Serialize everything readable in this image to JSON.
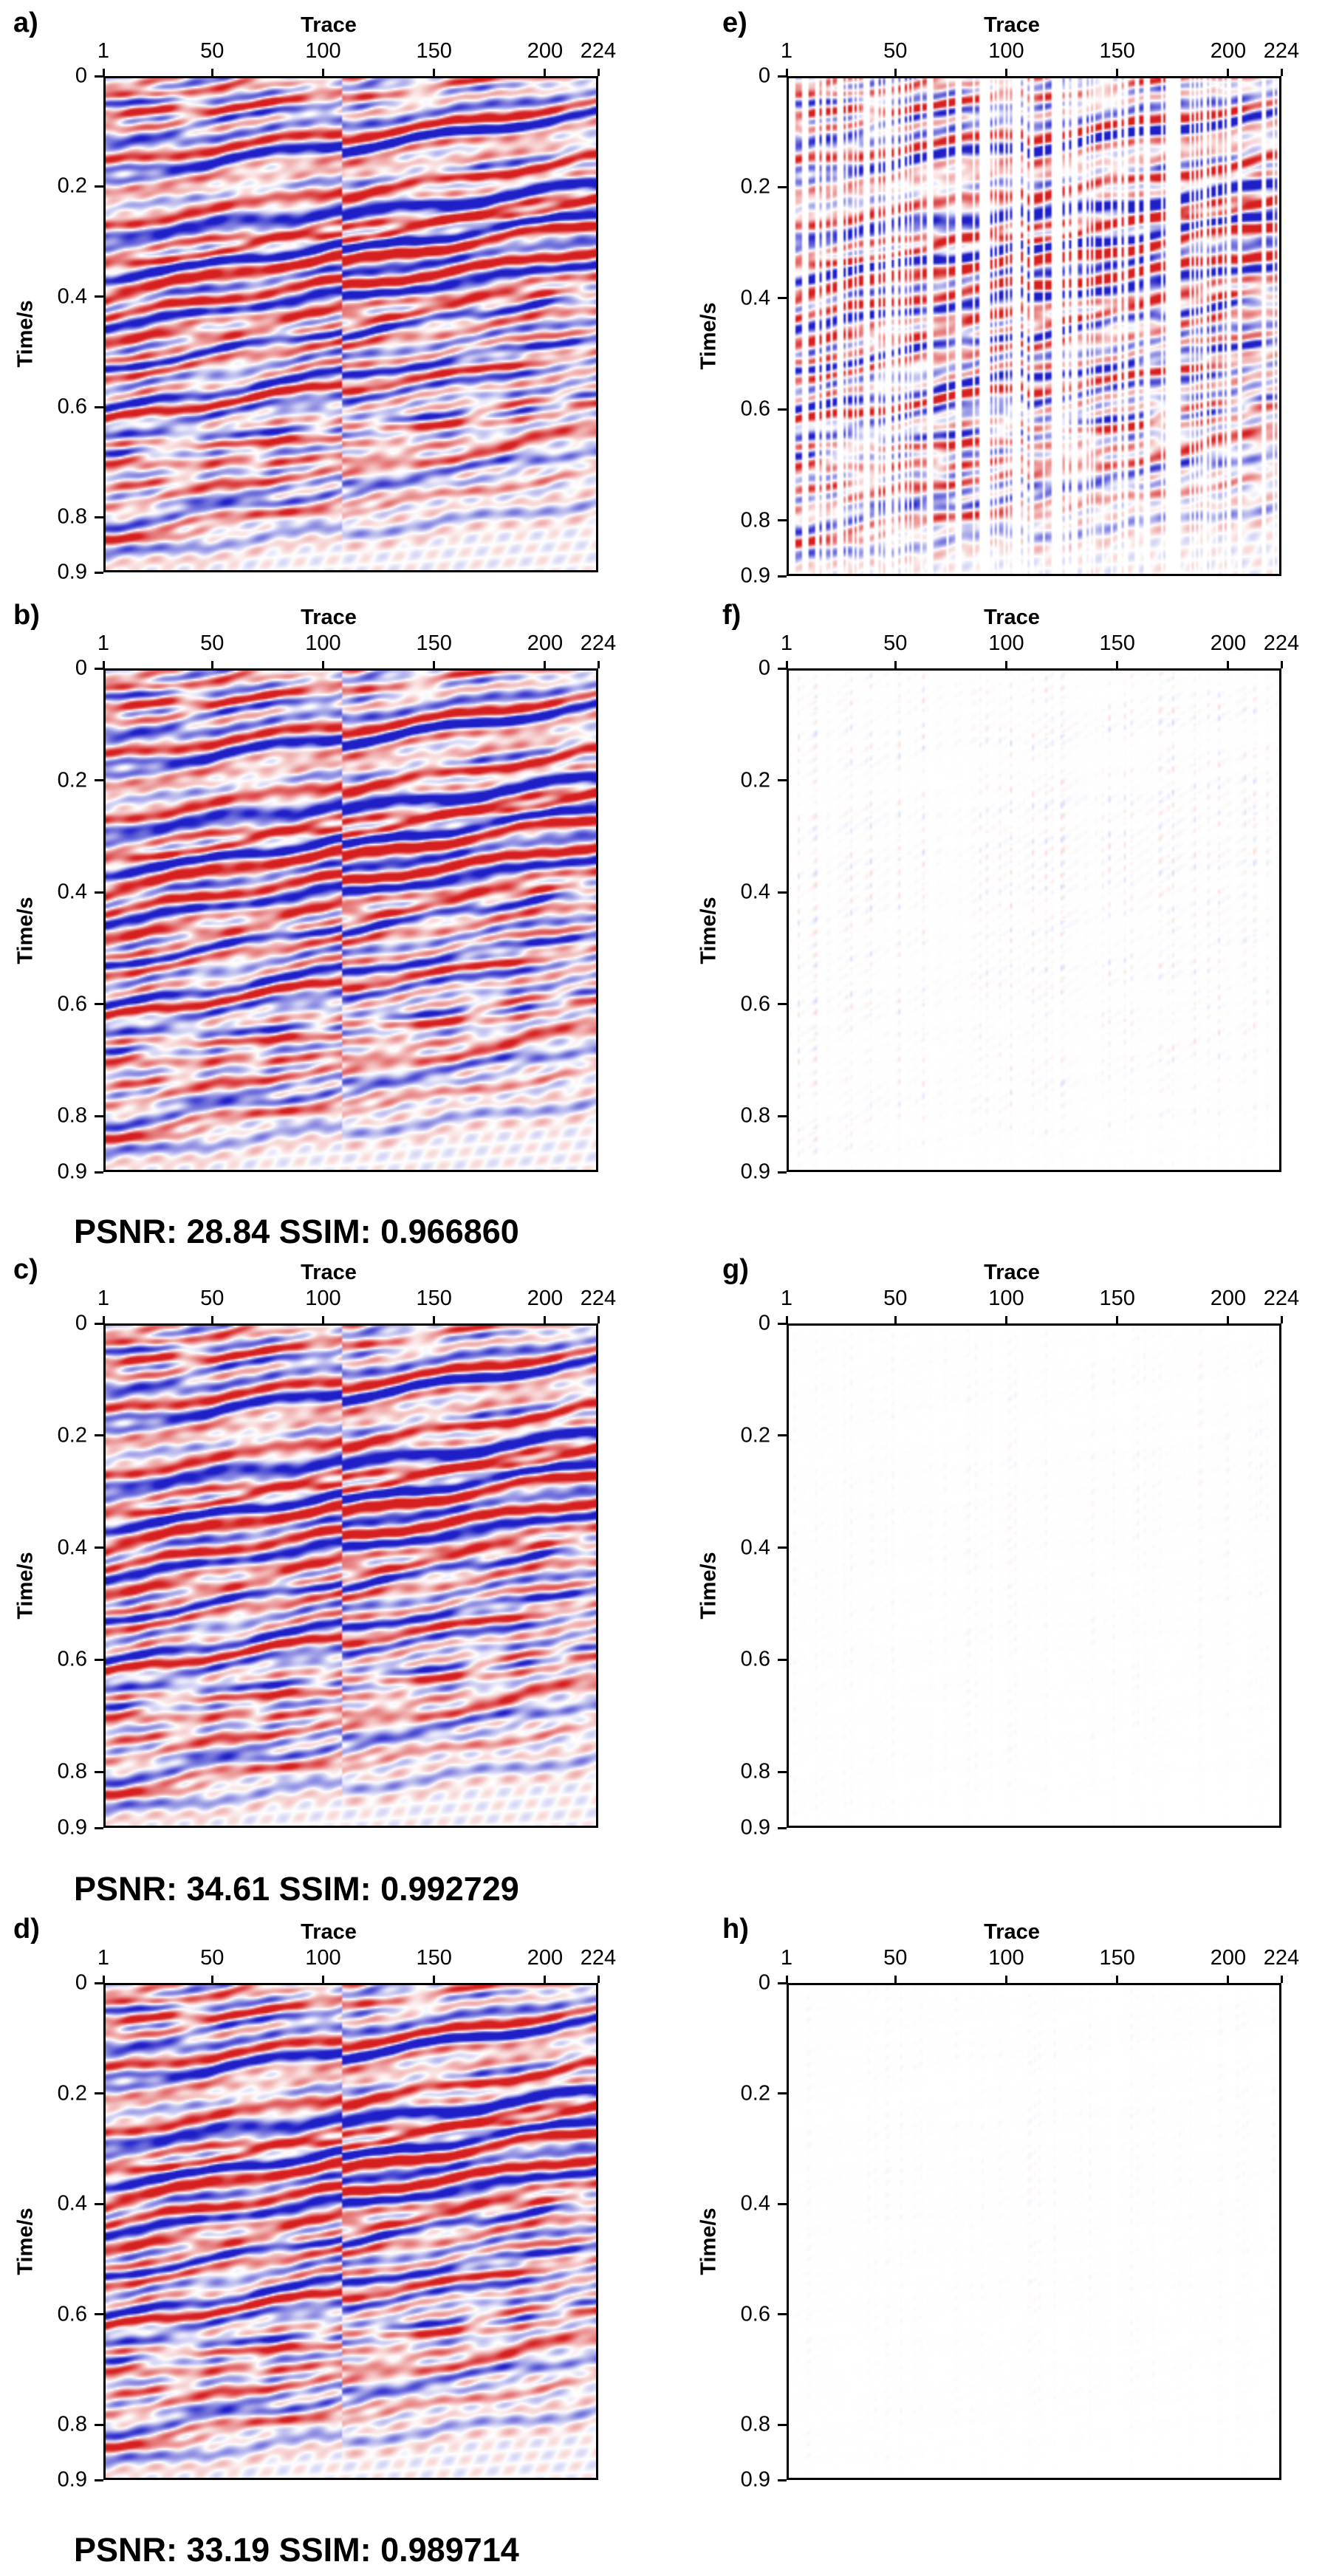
{
  "x_axis_title": "Trace",
  "y_axis_title": "Time/s",
  "x_ticks": [
    "1",
    "50",
    "100",
    "150",
    "200",
    "224"
  ],
  "y_ticks": [
    "0",
    "0.2",
    "0.4",
    "0.6",
    "0.8",
    "0.9"
  ],
  "colors": {
    "positive": "#d62020",
    "negative": "#1f1fc8",
    "frame": "#000000"
  },
  "panels": [
    {
      "id": "a",
      "label": "a)",
      "kind": "section",
      "amplitude": 1.0
    },
    {
      "id": "b",
      "label": "b)",
      "kind": "section",
      "amplitude": 1.0
    },
    {
      "id": "c",
      "label": "c)",
      "kind": "section",
      "amplitude": 1.0
    },
    {
      "id": "d",
      "label": "d)",
      "kind": "section",
      "amplitude": 1.0
    },
    {
      "id": "e",
      "label": "e)",
      "kind": "sampled",
      "amplitude": 1.0
    },
    {
      "id": "f",
      "label": "f)",
      "kind": "residual",
      "amplitude": 0.18
    },
    {
      "id": "g",
      "label": "g)",
      "kind": "residual",
      "amplitude": 0.06
    },
    {
      "id": "h",
      "label": "h)",
      "kind": "residual",
      "amplitude": 0.05
    }
  ],
  "metrics": [
    {
      "text": "PSNR: 28.84 SSIM: 0.966860"
    },
    {
      "text": "PSNR: 34.61 SSIM: 0.992729"
    },
    {
      "text": "PSNR: 33.19 SSIM: 0.989714"
    }
  ]
}
